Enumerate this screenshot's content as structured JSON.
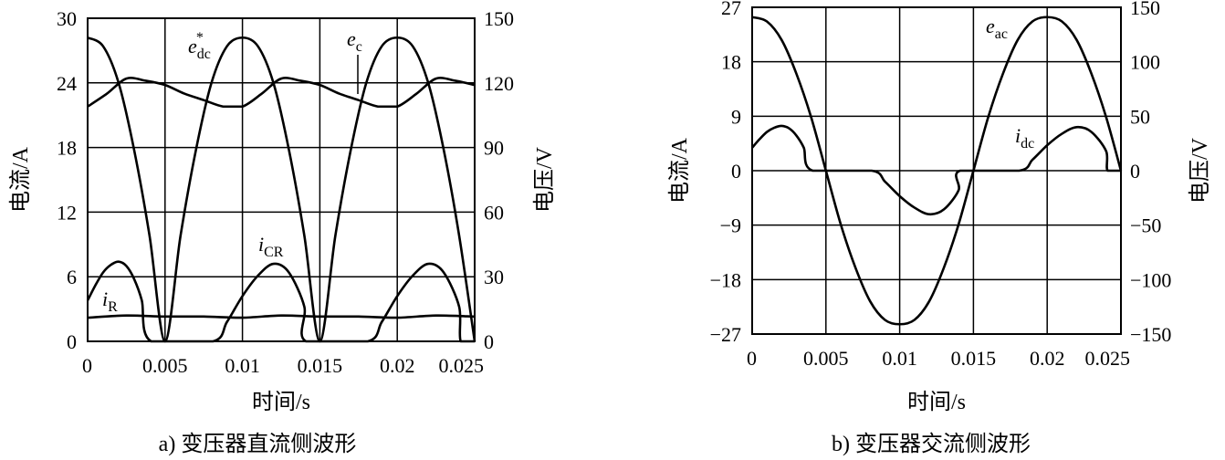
{
  "charts": [
    {
      "caption": "a) 变压器直流侧波形",
      "xlabel": "时间/s",
      "ylabel_left": "电流/A",
      "ylabel_right": "电压/V",
      "x_ticks": [
        "0",
        "0.005",
        "0.01",
        "0.015",
        "0.02",
        "0.025"
      ],
      "y_ticks_left": [
        "0",
        "6",
        "12",
        "18",
        "24",
        "30"
      ],
      "y_ticks_right": [
        "0",
        "30",
        "60",
        "90",
        "120",
        "150"
      ],
      "labels": {
        "e_dc": {
          "base": "e",
          "sub": "dc",
          "sup": "*"
        },
        "e_c": {
          "base": "e",
          "sub": "c"
        },
        "i_CR": {
          "base": "i",
          "sub": "CR"
        },
        "i_R": {
          "base": "i",
          "sub": "R"
        }
      }
    },
    {
      "caption": "b) 变压器交流侧波形",
      "xlabel": "时间/s",
      "ylabel_left": "电流/A",
      "ylabel_right": "电压/V",
      "x_ticks": [
        "0",
        "0.005",
        "0.01",
        "0.015",
        "0.02",
        "0.025"
      ],
      "y_ticks_left": [
        "−27",
        "−18",
        "−9",
        "0",
        "9",
        "18",
        "27"
      ],
      "y_ticks_right": [
        "−150",
        "−100",
        "−50",
        "0",
        "50",
        "100",
        "150"
      ],
      "labels": {
        "e_ac": {
          "base": "e",
          "sub": "ac"
        },
        "i_dc": {
          "base": "i",
          "sub": "dc"
        }
      }
    }
  ],
  "chart_data": [
    {
      "type": "line",
      "title": "a) 变压器直流侧波形",
      "xlabel": "时间/s",
      "ylabel": "电流/A",
      "y2label": "电压/V",
      "xlim": [
        0,
        0.025
      ],
      "ylim": [
        0,
        30
      ],
      "y2lim": [
        0,
        150
      ],
      "grid": true,
      "series": [
        {
          "name": "e_dc*",
          "axis": "right",
          "x": [
            0,
            0.001,
            0.002,
            0.003,
            0.004,
            0.005,
            0.006,
            0.007,
            0.008,
            0.009,
            0.01,
            0.011,
            0.012,
            0.013,
            0.014,
            0.015,
            0.016,
            0.017,
            0.018,
            0.019,
            0.02,
            0.021,
            0.022,
            0.023,
            0.024,
            0.025
          ],
          "y": [
            141,
            137,
            120,
            89,
            49,
            0,
            49,
            89,
            120,
            137,
            141,
            137,
            120,
            89,
            49,
            0,
            49,
            89,
            120,
            137,
            141,
            137,
            120,
            89,
            49,
            0
          ]
        },
        {
          "name": "e_c",
          "axis": "right",
          "x": [
            0,
            0.00125,
            0.0025,
            0.00375,
            0.005,
            0.00625,
            0.0075,
            0.00875,
            0.01,
            0.01125,
            0.0125,
            0.01375,
            0.015,
            0.01625,
            0.0175,
            0.01875,
            0.02,
            0.02125,
            0.0225,
            0.02375,
            0.025
          ],
          "y": [
            109,
            115,
            122,
            121,
            119,
            115,
            112,
            109,
            109,
            115,
            122,
            121,
            119,
            115,
            112,
            109,
            109,
            115,
            122,
            121,
            119
          ]
        },
        {
          "name": "i_CR",
          "axis": "left",
          "x": [
            0,
            0.0005,
            0.001,
            0.0015,
            0.002,
            0.0025,
            0.003,
            0.0035,
            0.0041,
            0.0081,
            0.009,
            0.01,
            0.011,
            0.012,
            0.013,
            0.014,
            0.0141,
            0.0181,
            0.019,
            0.02,
            0.021,
            0.022,
            0.023,
            0.024,
            0.0241,
            0.025
          ],
          "y": [
            3.8,
            5.2,
            6.4,
            7.1,
            7.4,
            7.0,
            5.8,
            3.8,
            0,
            0,
            1.8,
            4.2,
            6.1,
            7.2,
            6.4,
            3.2,
            0,
            0,
            1.8,
            4.2,
            6.1,
            7.2,
            6.4,
            3.2,
            0,
            0
          ]
        },
        {
          "name": "i_R",
          "axis": "left",
          "x": [
            0,
            0.0025,
            0.005,
            0.0075,
            0.01,
            0.0125,
            0.015,
            0.0175,
            0.02,
            0.0225,
            0.025
          ],
          "y": [
            2.2,
            2.4,
            2.3,
            2.3,
            2.2,
            2.4,
            2.3,
            2.3,
            2.2,
            2.4,
            2.3
          ]
        }
      ]
    },
    {
      "type": "line",
      "title": "b) 变压器交流侧波形",
      "xlabel": "时间/s",
      "ylabel": "电流/A",
      "y2label": "电压/V",
      "xlim": [
        0,
        0.025
      ],
      "ylim": [
        -27,
        27
      ],
      "y2lim": [
        -150,
        150
      ],
      "grid": true,
      "series": [
        {
          "name": "e_ac",
          "axis": "right",
          "x": [
            0,
            0.001,
            0.002,
            0.003,
            0.004,
            0.005,
            0.006,
            0.007,
            0.008,
            0.009,
            0.01,
            0.011,
            0.012,
            0.013,
            0.014,
            0.015,
            0.016,
            0.017,
            0.018,
            0.019,
            0.02,
            0.021,
            0.022,
            0.023,
            0.024,
            0.025
          ],
          "y": [
            141,
            137,
            120,
            89,
            49,
            0,
            -49,
            -89,
            -120,
            -137,
            -141,
            -137,
            -120,
            -89,
            -49,
            0,
            49,
            89,
            120,
            137,
            141,
            137,
            120,
            89,
            49,
            0
          ]
        },
        {
          "name": "i_dc",
          "axis": "left",
          "x": [
            0,
            0.0005,
            0.001,
            0.0015,
            0.002,
            0.0025,
            0.003,
            0.0035,
            0.0041,
            0.0081,
            0.009,
            0.01,
            0.011,
            0.012,
            0.013,
            0.014,
            0.0141,
            0.0181,
            0.019,
            0.02,
            0.021,
            0.022,
            0.023,
            0.024,
            0.0241,
            0.025
          ],
          "y": [
            3.8,
            5.2,
            6.4,
            7.1,
            7.4,
            7.0,
            5.8,
            3.8,
            0,
            0,
            -1.8,
            -4.2,
            -6.1,
            -7.2,
            -6.4,
            -3.2,
            0,
            0,
            1.8,
            4.2,
            6.1,
            7.2,
            6.4,
            3.2,
            0,
            0
          ]
        }
      ]
    }
  ]
}
